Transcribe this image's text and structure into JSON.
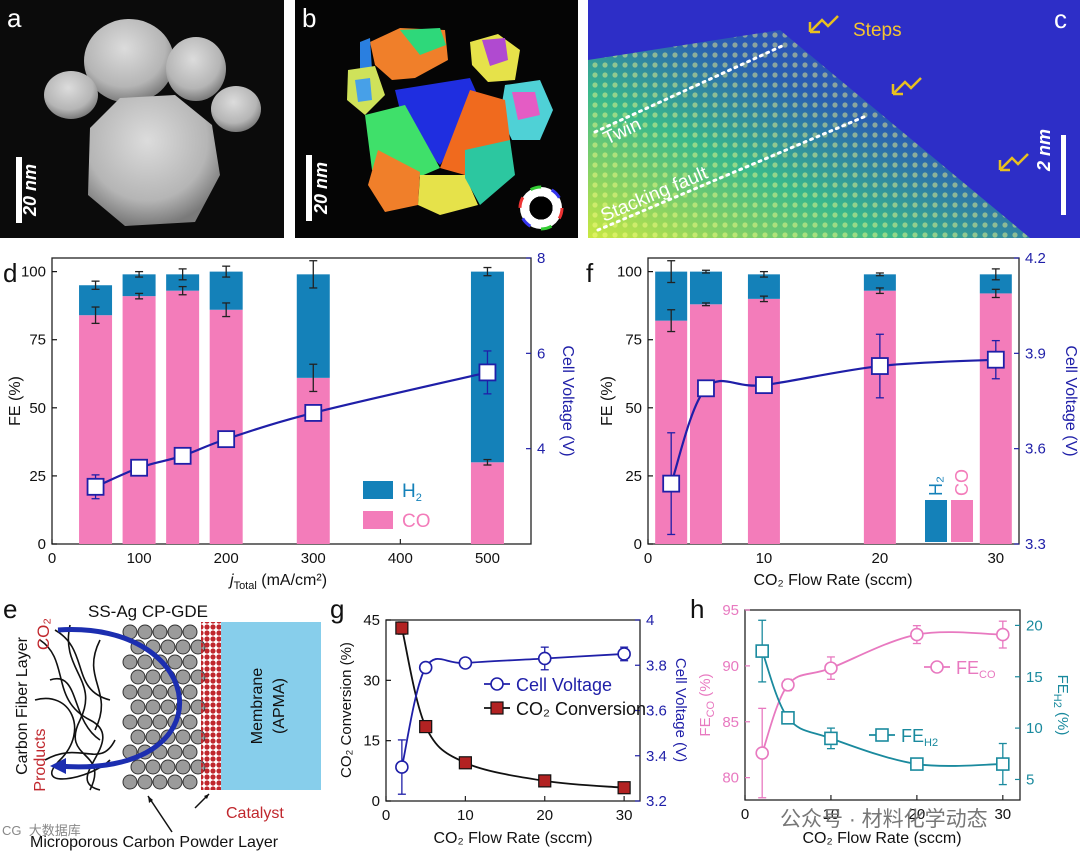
{
  "panel_letters": {
    "a": "a",
    "b": "b",
    "c": "c",
    "d": "d",
    "e": "e",
    "f": "f",
    "g": "g",
    "h": "h"
  },
  "scalebars": {
    "a": "20 nm",
    "b": "20 nm",
    "c": "2 nm"
  },
  "panel_c": {
    "steps": "Steps",
    "twin": "Twin",
    "stacking_fault": "Stacking fault"
  },
  "panel_e": {
    "title": "SS-Ag CP-GDE",
    "co2": "CO₂",
    "carbon_fiber_layer": "Carbon Fiber Layer",
    "products": "Products",
    "membrane_line1": "Membrane",
    "membrane_line2": "(APMA)",
    "catalyst": "Catalyst",
    "microporous": "Microporous Carbon Powder Layer"
  },
  "watermark": {
    "left": "CG  大数据库",
    "right": "公众号 · 材料化学动态"
  },
  "colors": {
    "h2": "#1481b9",
    "co": "#f37cba",
    "voltage": "#1f1fa8",
    "conversion": "#b22222",
    "h2_teal": "#1a8a9e",
    "co_pink": "#e879c0"
  },
  "chart_data": [
    {
      "id": "d",
      "type": "bar",
      "xlabel": "j",
      "xlabel_sub": "Total",
      "xlabel_units": " (mA/cm²)",
      "ylabel": "FE (%)",
      "y2label": "Cell Voltage (V)",
      "xlim": [
        0,
        550
      ],
      "ylim": [
        0,
        105
      ],
      "y2lim": [
        2,
        8
      ],
      "xticks": [
        0,
        100,
        200,
        300,
        400,
        500
      ],
      "yticks": [
        0,
        25,
        50,
        75,
        100
      ],
      "y2ticks": [
        4,
        6,
        8
      ],
      "legend": [
        "H₂",
        "CO"
      ],
      "categories": [
        50,
        100,
        150,
        200,
        300,
        500
      ],
      "series": [
        {
          "name": "CO",
          "values": [
            84,
            91,
            93,
            86,
            61,
            30
          ],
          "err": [
            3,
            1,
            1.5,
            2.5,
            5,
            1
          ]
        },
        {
          "name": "H₂",
          "values": [
            11,
            8,
            6,
            14,
            38,
            70
          ],
          "err": [
            1.5,
            1,
            2,
            2,
            5,
            1.5
          ]
        }
      ],
      "voltage": {
        "x": [
          50,
          100,
          150,
          200,
          300,
          500
        ],
        "y": [
          3.2,
          3.6,
          3.85,
          4.2,
          4.75,
          5.6
        ],
        "err": [
          0.25,
          0.12,
          0.12,
          0.14,
          0.12,
          0.45
        ]
      }
    },
    {
      "id": "f",
      "type": "bar",
      "xlabel": "CO₂ Flow Rate (sccm)",
      "ylabel": "FE (%)",
      "y2label": "Cell Voltage (V)",
      "xlim": [
        0,
        32
      ],
      "ylim": [
        0,
        105
      ],
      "y2lim": [
        3.3,
        4.2
      ],
      "xticks": [
        0,
        10,
        20,
        30
      ],
      "yticks": [
        0,
        25,
        50,
        75,
        100
      ],
      "y2ticks": [
        3.3,
        3.6,
        3.9,
        4.2
      ],
      "legend": [
        "H₂",
        "CO"
      ],
      "categories": [
        2,
        5,
        10,
        20,
        30
      ],
      "series": [
        {
          "name": "CO",
          "values": [
            82,
            88,
            90,
            93,
            92
          ],
          "err": [
            4,
            0.5,
            1,
            1,
            1.5
          ]
        },
        {
          "name": "H₂",
          "values": [
            18,
            12,
            9,
            6,
            7
          ],
          "err": [
            4,
            0.5,
            1,
            0.5,
            2
          ]
        }
      ],
      "voltage": {
        "x": [
          2,
          5,
          10,
          20,
          30
        ],
        "y": [
          3.49,
          3.79,
          3.8,
          3.86,
          3.88
        ],
        "err": [
          0.16,
          0.02,
          0.02,
          0.1,
          0.06
        ]
      }
    },
    {
      "id": "g",
      "type": "line",
      "xlabel": "CO₂ Flow Rate (sccm)",
      "ylabel": "CO₂ Conversion (%)",
      "y2label": "Cell Voltage (V)",
      "xlim": [
        0,
        32
      ],
      "ylim": [
        0,
        45
      ],
      "y2lim": [
        3.2,
        4.0
      ],
      "xticks": [
        0,
        10,
        20,
        30
      ],
      "yticks": [
        0,
        15,
        30,
        45
      ],
      "y2ticks": [
        3.2,
        3.4,
        3.6,
        3.8,
        4.0
      ],
      "legend": [
        "Cell Voltage",
        "CO₂ Conversion"
      ],
      "series": [
        {
          "name": "CO₂ Conversion",
          "x": [
            2,
            5,
            10,
            20,
            30
          ],
          "y": [
            43,
            18.5,
            9.5,
            5,
            3.3
          ],
          "err": [
            1.5,
            0.8,
            0.5,
            0.4,
            0.3
          ]
        },
        {
          "name": "Cell Voltage",
          "x": [
            2,
            5,
            10,
            20,
            30
          ],
          "y": [
            3.35,
            3.79,
            3.81,
            3.83,
            3.85
          ],
          "err": [
            0.12,
            0.01,
            0.01,
            0.05,
            0.03
          ]
        }
      ]
    },
    {
      "id": "h",
      "type": "line",
      "xlabel": "CO₂ Flow Rate (sccm)",
      "ylabel": "FE",
      "ylabel_sub": "CO",
      "ylabel_units": " (%)",
      "y2label": "FE",
      "y2label_sub": "H2",
      "y2label_units": " (%)",
      "xlim": [
        0,
        32
      ],
      "ylim": [
        78,
        95
      ],
      "y2lim": [
        3,
        21.5
      ],
      "xticks": [
        0,
        10,
        20,
        30
      ],
      "yticks": [
        80,
        85,
        90,
        95
      ],
      "y2ticks": [
        5,
        10,
        15,
        20
      ],
      "legend": [
        "FE",
        "FE"
      ],
      "legend_subs": [
        "CO",
        "H2"
      ],
      "series": [
        {
          "name": "FE_CO",
          "x": [
            2,
            5,
            10,
            20,
            30
          ],
          "y": [
            82.2,
            88.3,
            89.8,
            92.8,
            92.8
          ],
          "err": [
            4,
            0.5,
            1,
            0.8,
            1.2
          ]
        },
        {
          "name": "FE_H2",
          "x": [
            2,
            5,
            10,
            20,
            30
          ],
          "y": [
            17.5,
            11,
            9,
            6.5,
            6.5
          ],
          "err": [
            3,
            0.5,
            1,
            0.5,
            2
          ]
        }
      ]
    }
  ]
}
